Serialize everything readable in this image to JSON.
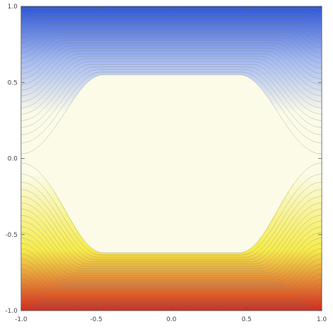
{
  "chart_data": {
    "type": "contour",
    "title": "",
    "xlabel": "",
    "ylabel": "",
    "xlim": [
      -1.0,
      1.0
    ],
    "ylim": [
      -1.0,
      1.0
    ],
    "grid": false,
    "legend": "none",
    "x_ticks": [
      "-1.0",
      "-0.5",
      "0.0",
      "0.5",
      "1.0"
    ],
    "y_ticks": [
      "1.0",
      "0.5",
      "0.0",
      "-0.5",
      "-1.0"
    ],
    "x_tick_values": [
      -1.0,
      -0.5,
      0.0,
      0.5,
      1.0
    ],
    "y_tick_values": [
      1.0,
      0.5,
      0.0,
      -0.5,
      -1.0
    ],
    "colormap": {
      "top_edge": "#2c55d6",
      "upper": "#a7bcf0",
      "center": "#fbfbe8",
      "lower": "#f6ec4c",
      "bottom_edge": "#d32a1e"
    },
    "contour_line_color": "#7a7a7a",
    "plateau": {
      "upper_level_y": 0.55,
      "lower_level_y": -0.62,
      "corner_x": 0.75
    }
  }
}
